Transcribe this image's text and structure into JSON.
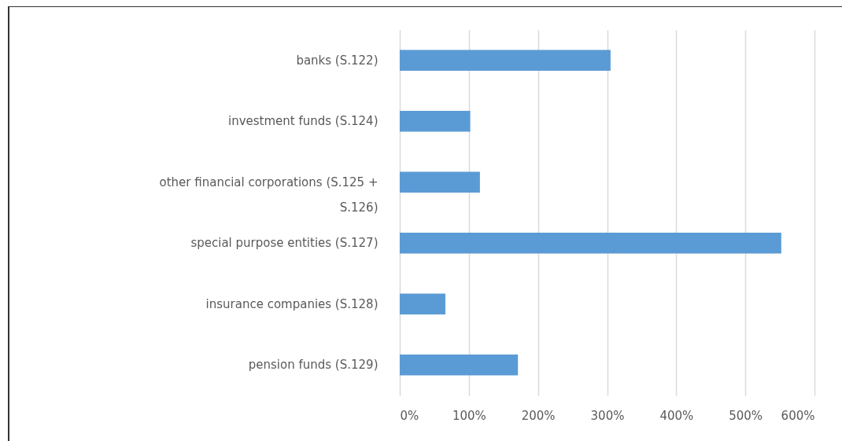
{
  "chart_data": {
    "type": "bar",
    "orientation": "horizontal",
    "categories": [
      "banks (S.122)",
      "investment funds (S.124)",
      "other financial corporations (S.125 + S.126)",
      "special purpose entities (S.127)",
      "insurance companies (S.128)",
      "pension funds (S.129)"
    ],
    "values": [
      305,
      102,
      116,
      552,
      66,
      171
    ],
    "color": "#5b9bd5",
    "xlim": [
      0,
      600
    ],
    "xticks": [
      {
        "value": 0,
        "label": "0%"
      },
      {
        "value": 100,
        "label": "100%"
      },
      {
        "value": 200,
        "label": "200%"
      },
      {
        "value": 300,
        "label": "300%"
      },
      {
        "value": 400,
        "label": "400%"
      },
      {
        "value": 500,
        "label": "500%"
      },
      {
        "value": 600,
        "label": "600%"
      }
    ],
    "grid": "x"
  }
}
